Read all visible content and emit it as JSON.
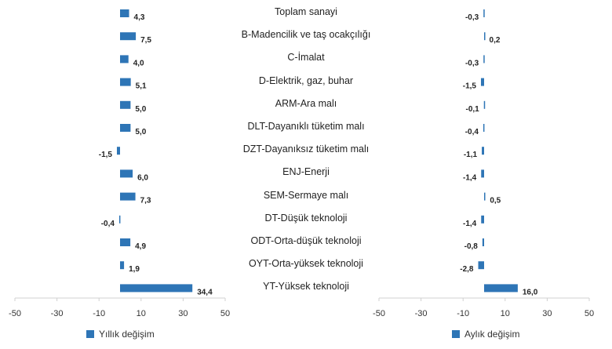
{
  "chart_data": {
    "type": "bar",
    "orientation": "horizontal",
    "categories": [
      "Toplam sanayi",
      "B-Madencilik ve taş ocakçılığı",
      "C-İmalat",
      "D-Elektrik, gaz, buhar",
      "ARM-Ara malı",
      "DLT-Dayanıklı tüketim malı",
      "DZT-Dayanıksız tüketim malı",
      "ENJ-Enerji",
      "SEM-Sermaye malı",
      "DT-Düşük teknoloji",
      "ODT-Orta-düşük teknoloji",
      "OYT-Orta-yüksek teknoloji",
      "YT-Yüksek teknoloji"
    ],
    "series": [
      {
        "name": "Yıllık değişim",
        "values": [
          4.3,
          7.5,
          4.0,
          5.1,
          5.0,
          5.0,
          -1.5,
          6.0,
          7.3,
          -0.4,
          4.9,
          1.9,
          34.4
        ],
        "value_labels": [
          "4,3",
          "7,5",
          "4,0",
          "5,1",
          "5,0",
          "5,0",
          "-1,5",
          "6,0",
          "7,3",
          "-0,4",
          "4,9",
          "1,9",
          "34,4"
        ]
      },
      {
        "name": "Aylık değişim",
        "values": [
          -0.3,
          0.2,
          -0.3,
          -1.5,
          -0.1,
          -0.4,
          -1.1,
          -1.4,
          0.5,
          -1.4,
          -0.8,
          -2.8,
          16.0
        ],
        "value_labels": [
          "-0,3",
          "0,2",
          "-0,3",
          "-1,5",
          "-0,1",
          "-0,4",
          "-1,1",
          "-1,4",
          "0,5",
          "-1,4",
          "-0,8",
          "-2,8",
          "16,0"
        ]
      }
    ],
    "xlim": [
      -50,
      50
    ],
    "xticks": [
      -50,
      -30,
      -10,
      10,
      30,
      50
    ],
    "grid": false,
    "legend": "bottom",
    "colors": {
      "bar": "#2E75B6",
      "axis": "#d0d0d0",
      "text": "#222222"
    }
  }
}
